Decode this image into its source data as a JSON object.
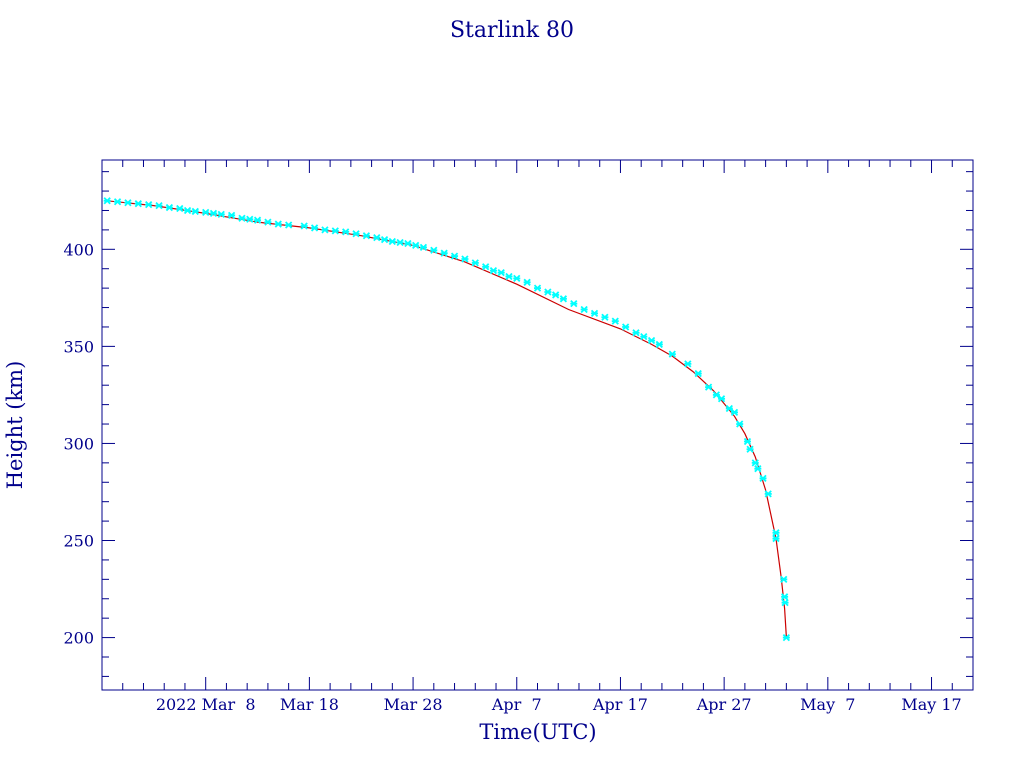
{
  "chart_data": {
    "type": "scatter",
    "title": "Starlink 80",
    "xlabel": "Time(UTC)",
    "ylabel": "Height (km)",
    "x_tick_labels": [
      "2022 Mar  8",
      "Mar 18",
      "Mar 28",
      "Apr  7",
      "Apr 17",
      "Apr 27",
      "May  7",
      "May 17"
    ],
    "x_ticks": [
      "2022-03-08",
      "2022-03-18",
      "2022-03-28",
      "2022-04-07",
      "2022-04-17",
      "2022-04-27",
      "2022-05-07",
      "2022-05-17"
    ],
    "y_ticks": [
      200,
      250,
      300,
      350,
      400
    ],
    "xlim": [
      "2022-02-26T00:00",
      "2022-05-21T00:00"
    ],
    "ylim": [
      173,
      446
    ],
    "grid": false,
    "series": [
      {
        "kind": "fit-line",
        "color": "#cc0000",
        "points": [
          [
            "2022-02-26T12:00",
            425
          ],
          [
            "2022-03-03T00:00",
            422.5
          ],
          [
            "2022-03-08T00:00",
            418.5
          ],
          [
            "2022-03-13T00:00",
            414
          ],
          [
            "2022-03-18T00:00",
            411
          ],
          [
            "2022-03-23T00:00",
            407
          ],
          [
            "2022-03-28T00:00",
            402
          ],
          [
            "2022-04-02T00:00",
            393.5
          ],
          [
            "2022-04-07T00:00",
            382
          ],
          [
            "2022-04-12T00:00",
            369
          ],
          [
            "2022-04-17T00:00",
            359
          ],
          [
            "2022-04-20T00:00",
            351
          ],
          [
            "2022-04-22T00:00",
            345
          ],
          [
            "2022-04-24T00:00",
            337
          ],
          [
            "2022-04-26T00:00",
            327
          ],
          [
            "2022-04-28T00:00",
            314
          ],
          [
            "2022-04-29T00:00",
            305
          ],
          [
            "2022-04-30T00:00",
            293
          ],
          [
            "2022-05-01T00:00",
            276
          ],
          [
            "2022-05-02T00:00",
            251
          ],
          [
            "2022-05-02T12:00",
            231
          ],
          [
            "2022-05-02T20:00",
            215
          ],
          [
            "2022-05-03T00:00",
            200
          ]
        ]
      },
      {
        "kind": "observations",
        "color": "#00ffff",
        "points": [
          [
            "2022-02-26T12:00",
            425
          ],
          [
            "2022-02-27T12:00",
            424.5
          ],
          [
            "2022-02-28T12:00",
            424
          ],
          [
            "2022-03-01T12:00",
            423.5
          ],
          [
            "2022-03-02T12:00",
            423
          ],
          [
            "2022-03-03T12:00",
            422.5
          ],
          [
            "2022-03-04T12:00",
            421.5
          ],
          [
            "2022-03-05T12:00",
            421
          ],
          [
            "2022-03-06T06:00",
            420
          ],
          [
            "2022-03-07T00:00",
            419.5
          ],
          [
            "2022-03-08T00:00",
            419
          ],
          [
            "2022-03-08T18:00",
            418.5
          ],
          [
            "2022-03-09T12:00",
            418
          ],
          [
            "2022-03-10T12:00",
            417.5
          ],
          [
            "2022-03-11T12:00",
            416
          ],
          [
            "2022-03-12T06:00",
            415.5
          ],
          [
            "2022-03-13T00:00",
            415
          ],
          [
            "2022-03-14T00:00",
            414
          ],
          [
            "2022-03-15T00:00",
            413
          ],
          [
            "2022-03-16T00:00",
            412.5
          ],
          [
            "2022-03-17T12:00",
            412
          ],
          [
            "2022-03-18T12:00",
            411
          ],
          [
            "2022-03-19T12:00",
            410
          ],
          [
            "2022-03-20T12:00",
            409.5
          ],
          [
            "2022-03-21T12:00",
            409
          ],
          [
            "2022-03-22T12:00",
            408
          ],
          [
            "2022-03-23T12:00",
            407
          ],
          [
            "2022-03-24T12:00",
            406
          ],
          [
            "2022-03-25T06:00",
            405
          ],
          [
            "2022-03-26T00:00",
            404
          ],
          [
            "2022-03-26T18:00",
            403.5
          ],
          [
            "2022-03-27T12:00",
            403
          ],
          [
            "2022-03-28T06:00",
            402
          ],
          [
            "2022-03-29T00:00",
            401
          ],
          [
            "2022-03-30T00:00",
            399.5
          ],
          [
            "2022-03-31T00:00",
            398
          ],
          [
            "2022-04-01T00:00",
            396.5
          ],
          [
            "2022-04-02T00:00",
            395
          ],
          [
            "2022-04-03T00:00",
            393
          ],
          [
            "2022-04-04T00:00",
            391
          ],
          [
            "2022-04-04T18:00",
            389
          ],
          [
            "2022-04-05T12:00",
            388
          ],
          [
            "2022-04-06T06:00",
            386
          ],
          [
            "2022-04-07T00:00",
            385
          ],
          [
            "2022-04-08T00:00",
            383
          ],
          [
            "2022-04-09T00:00",
            380
          ],
          [
            "2022-04-10T00:00",
            378
          ],
          [
            "2022-04-10T18:00",
            376.5
          ],
          [
            "2022-04-11T12:00",
            374.5
          ],
          [
            "2022-04-12T12:00",
            372
          ],
          [
            "2022-04-13T12:00",
            369
          ],
          [
            "2022-04-14T12:00",
            367
          ],
          [
            "2022-04-15T12:00",
            365
          ],
          [
            "2022-04-16T12:00",
            363
          ],
          [
            "2022-04-17T12:00",
            360
          ],
          [
            "2022-04-18T12:00",
            357
          ],
          [
            "2022-04-19T06:00",
            355
          ],
          [
            "2022-04-20T00:00",
            353
          ],
          [
            "2022-04-20T18:00",
            351
          ],
          [
            "2022-04-22T00:00",
            346
          ],
          [
            "2022-04-23T12:00",
            341
          ],
          [
            "2022-04-24T12:00",
            336
          ],
          [
            "2022-04-25T12:00",
            329
          ],
          [
            "2022-04-26T06:00",
            325
          ],
          [
            "2022-04-26T18:00",
            323
          ],
          [
            "2022-04-27T12:00",
            318
          ],
          [
            "2022-04-28T00:00",
            316
          ],
          [
            "2022-04-28T12:00",
            310
          ],
          [
            "2022-04-29T06:00",
            301
          ],
          [
            "2022-04-29T12:00",
            297
          ],
          [
            "2022-04-30T00:00",
            290
          ],
          [
            "2022-04-30T06:00",
            287
          ],
          [
            "2022-04-30T18:00",
            282
          ],
          [
            "2022-05-01T06:00",
            274
          ],
          [
            "2022-05-02T00:00",
            254
          ],
          [
            "2022-05-02T00:00",
            251
          ],
          [
            "2022-05-02T18:00",
            230
          ],
          [
            "2022-05-02T20:00",
            221
          ],
          [
            "2022-05-02T21:00",
            218
          ],
          [
            "2022-05-03T00:00",
            200
          ]
        ]
      }
    ]
  }
}
